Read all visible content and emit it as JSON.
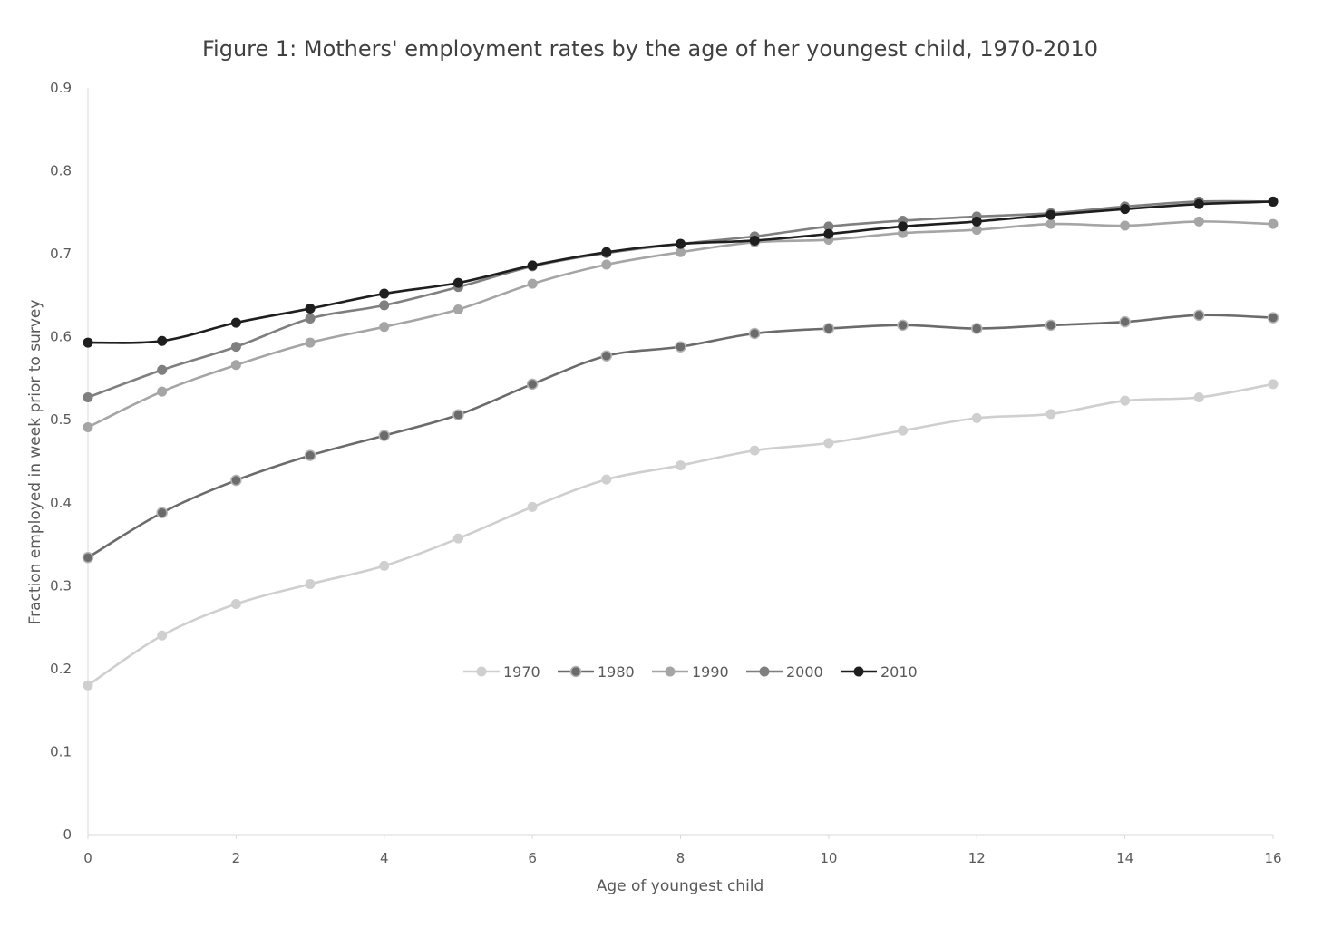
{
  "chart_data": {
    "type": "line",
    "title": "Figure 1: Mothers' employment rates by the age of her youngest child, 1970-2010",
    "xlabel": "Age of youngest child",
    "ylabel": "Fraction employed in week prior to survey",
    "xlim": [
      0,
      16
    ],
    "ylim": [
      0,
      0.9
    ],
    "x_ticks": [
      "0",
      "2",
      "4",
      "6",
      "8",
      "10",
      "12",
      "14",
      "16"
    ],
    "y_ticks": [
      "0",
      "0.1",
      "0.2",
      "0.3",
      "0.4",
      "0.5",
      "0.6",
      "0.7",
      "0.8",
      "0.9"
    ],
    "grid": false,
    "legend_position": "center",
    "x": [
      0,
      1,
      2,
      3,
      4,
      5,
      6,
      7,
      8,
      9,
      10,
      11,
      12,
      13,
      14,
      15,
      16
    ],
    "series": [
      {
        "name": "1970",
        "color": "#cfcfcf",
        "marker": "filled",
        "values": [
          0.18,
          0.24,
          0.278,
          0.302,
          0.324,
          0.357,
          0.395,
          0.428,
          0.445,
          0.463,
          0.472,
          0.487,
          0.502,
          0.507,
          0.523,
          0.527,
          0.543
        ]
      },
      {
        "name": "1980",
        "color": "#6b6b6b",
        "marker": "ringed",
        "values": [
          0.334,
          0.388,
          0.427,
          0.457,
          0.481,
          0.506,
          0.543,
          0.577,
          0.588,
          0.604,
          0.61,
          0.614,
          0.61,
          0.614,
          0.618,
          0.626,
          0.623
        ]
      },
      {
        "name": "1990",
        "color": "#a5a5a5",
        "marker": "filled",
        "values": [
          0.491,
          0.534,
          0.566,
          0.593,
          0.612,
          0.633,
          0.664,
          0.687,
          0.702,
          0.714,
          0.717,
          0.725,
          0.729,
          0.736,
          0.734,
          0.739,
          0.736
        ]
      },
      {
        "name": "2000",
        "color": "#7f7f7f",
        "marker": "filled",
        "values": [
          0.527,
          0.56,
          0.588,
          0.622,
          0.638,
          0.66,
          0.685,
          0.701,
          0.712,
          0.721,
          0.733,
          0.74,
          0.745,
          0.749,
          0.757,
          0.763,
          0.763
        ]
      },
      {
        "name": "2010",
        "color": "#1e1e1e",
        "marker": "filled",
        "values": [
          0.593,
          0.595,
          0.617,
          0.634,
          0.652,
          0.665,
          0.686,
          0.702,
          0.712,
          0.716,
          0.724,
          0.733,
          0.739,
          0.747,
          0.754,
          0.76,
          0.763
        ]
      }
    ]
  }
}
